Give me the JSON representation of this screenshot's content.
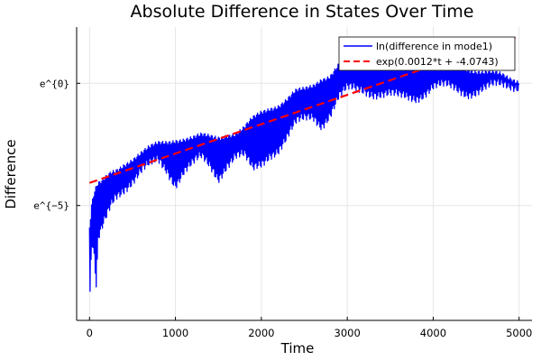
{
  "chart_data": {
    "type": "line",
    "title": "Absolute Difference in States Over Time",
    "xlabel": "Time",
    "ylabel": "Difference",
    "xlim": [
      -150,
      5150
    ],
    "ylim": [
      -9.7,
      2.3
    ],
    "xticks": [
      0,
      1000,
      2000,
      3000,
      4000,
      5000
    ],
    "xtick_labels": [
      "0",
      "1000",
      "2000",
      "3000",
      "4000",
      "5000"
    ],
    "yticks": [
      0,
      -5
    ],
    "ytick_labels": [
      "e^{0}",
      "e^{−5}"
    ],
    "grid": true,
    "legend_position": "top-right",
    "series": [
      {
        "name": "ln(difference in mode1)",
        "color": "#0000ff",
        "style": "solid",
        "envelope": {
          "x": [
            0,
            10,
            25,
            50,
            80,
            100,
            150,
            200,
            250,
            300,
            400,
            500,
            600,
            700,
            800,
            900,
            1000,
            1100,
            1200,
            1300,
            1400,
            1500,
            1600,
            1700,
            1800,
            1900,
            2000,
            2100,
            2200,
            2300,
            2400,
            2500,
            2600,
            2700,
            2800,
            2900,
            3000,
            3200,
            3400,
            3600,
            3800,
            4000,
            4200,
            4400,
            4600,
            4800,
            5000
          ],
          "upper": [
            -5.9,
            -5.6,
            -5.0,
            -4.6,
            -4.3,
            -4.2,
            -4.1,
            -3.9,
            -3.7,
            -3.6,
            -3.3,
            -3.1,
            -2.9,
            -2.7,
            -2.5,
            -2.4,
            -2.3,
            -2.3,
            -2.3,
            -2.2,
            -2.2,
            -2.2,
            -2.1,
            -2.1,
            -1.9,
            -1.5,
            -1.2,
            -1.0,
            -0.9,
            -0.7,
            -0.4,
            -0.3,
            -0.1,
            0.2,
            0.3,
            0.7,
            1.1,
            1.5,
            1.5,
            0.8,
            0.8,
            0.7,
            0.8,
            0.6,
            0.4,
            0.3,
            0.1
          ],
          "lower": [
            -9.3,
            -8.2,
            -6.5,
            -7.0,
            -8.5,
            -6.5,
            -6.0,
            -5.5,
            -5.0,
            -4.6,
            -4.2,
            -3.9,
            -3.6,
            -3.4,
            -3.2,
            -3.5,
            -4.0,
            -3.5,
            -3.3,
            -3.1,
            -3.4,
            -3.8,
            -3.2,
            -2.9,
            -3.0,
            -3.6,
            -3.3,
            -2.8,
            -2.6,
            -2.2,
            -1.7,
            -1.5,
            -1.3,
            -1.6,
            -1.2,
            -0.6,
            -0.3,
            -0.2,
            -0.4,
            -0.6,
            -0.5,
            -0.1,
            -0.2,
            -0.3,
            -0.2,
            -0.1,
            0.0
          ]
        }
      },
      {
        "name": "exp(0.0012*t + -4.0743)",
        "color": "#ff0000",
        "style": "dashed",
        "slope": 0.0012,
        "intercept": -4.0743,
        "x": [
          0,
          5000
        ],
        "y": [
          -4.0743,
          1.9257
        ]
      }
    ]
  }
}
